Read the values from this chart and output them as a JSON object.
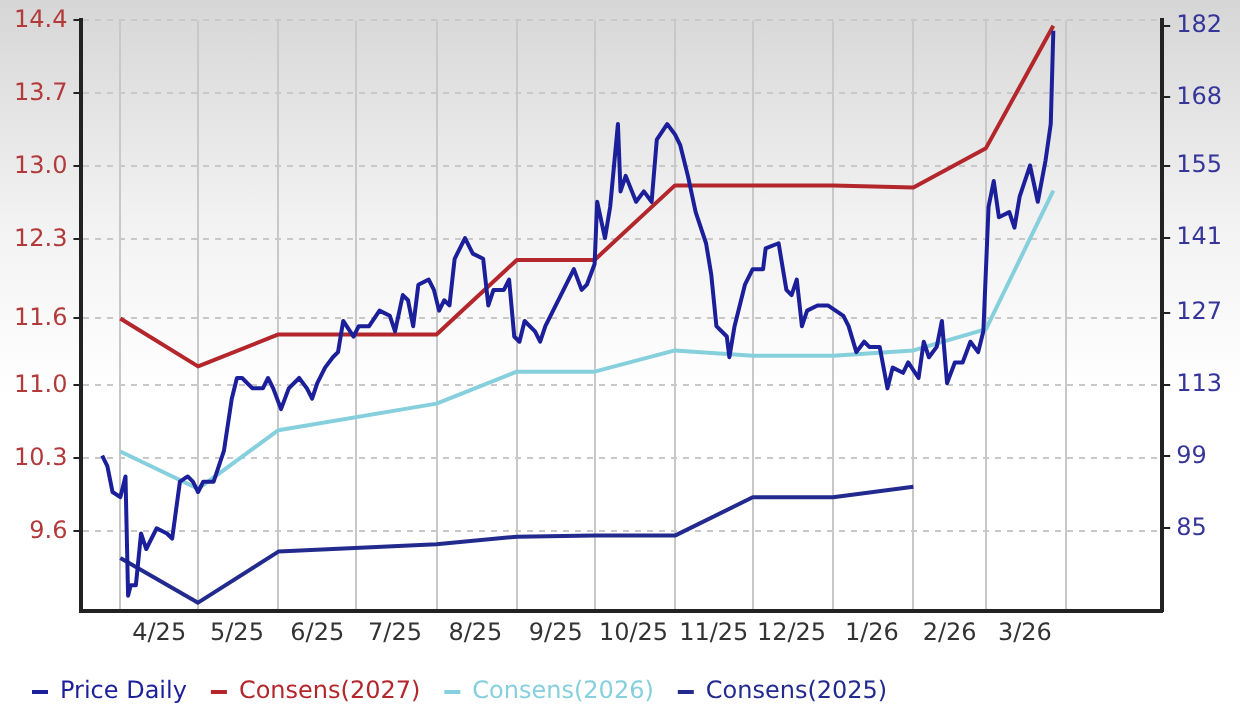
{
  "chart_data": {
    "type": "line",
    "xlim": [
      "2025-03-17",
      "2026-05-08"
    ],
    "xticks": [
      {
        "value": "2025-04-01",
        "label": null
      },
      {
        "value": "2025-04-16",
        "label": "4/25"
      },
      {
        "value": "2025-05-01",
        "label": null
      },
      {
        "value": "2025-05-16",
        "label": "5/25"
      },
      {
        "value": "2025-06-01",
        "label": null
      },
      {
        "value": "2025-06-16",
        "label": "6/25"
      },
      {
        "value": "2025-07-01",
        "label": null
      },
      {
        "value": "2025-07-16",
        "label": "7/25"
      },
      {
        "value": "2025-08-01",
        "label": null
      },
      {
        "value": "2025-08-16",
        "label": "8/25"
      },
      {
        "value": "2025-09-01",
        "label": null
      },
      {
        "value": "2025-09-16",
        "label": "9/25"
      },
      {
        "value": "2025-10-01",
        "label": null
      },
      {
        "value": "2025-10-16",
        "label": "10/25"
      },
      {
        "value": "2025-11-01",
        "label": null
      },
      {
        "value": "2025-11-16",
        "label": "11/25"
      },
      {
        "value": "2025-12-01",
        "label": null
      },
      {
        "value": "2025-12-16",
        "label": "12/25"
      },
      {
        "value": "2026-01-01",
        "label": null
      },
      {
        "value": "2026-01-16",
        "label": "1/26"
      },
      {
        "value": "2026-02-01",
        "label": null
      },
      {
        "value": "2026-02-15",
        "label": "2/26"
      },
      {
        "value": "2026-03-01",
        "label": null
      },
      {
        "value": "2026-03-16",
        "label": "3/26"
      },
      {
        "value": "2026-04-01",
        "label": null
      }
    ],
    "ylim": [
      8.85,
      14.4
    ],
    "yticks": [
      9.6,
      {
        "value": 10.286,
        "label": "10.3"
      },
      {
        "value": 10.971,
        "label": "11.0"
      },
      11.6,
      {
        "value": 12.343,
        "label": "12.3"
      },
      {
        "value": 13.029,
        "label": "13.0"
      },
      {
        "value": 13.714,
        "label": "13.7"
      },
      14.4
    ],
    "y2lim": [
      69,
      183
    ],
    "y2ticks": [
      85,
      {
        "value": 98.86,
        "label": "99"
      },
      {
        "value": 112.71,
        "label": "113"
      },
      {
        "value": 126.57,
        "label": "127"
      },
      141,
      155,
      {
        "value": 168.14,
        "label": "168"
      },
      182
    ],
    "grid": true,
    "legend": "bottom",
    "marker": "none",
    "line_style": "solid",
    "series": [
      {
        "name": "Price Daily",
        "color": "#1c1f9a",
        "axis": "y2",
        "x": [
          "2025-03-25",
          "2025-03-27",
          "2025-03-29",
          "2025-04-01",
          "2025-04-03",
          "2025-04-04",
          "2025-04-05",
          "2025-04-07",
          "2025-04-09",
          "2025-04-11",
          "2025-04-15",
          "2025-04-19",
          "2025-04-21",
          "2025-04-24",
          "2025-04-27",
          "2025-04-29",
          "2025-05-01",
          "2025-05-03",
          "2025-05-07",
          "2025-05-11",
          "2025-05-14",
          "2025-05-16",
          "2025-05-18",
          "2025-05-22",
          "2025-05-26",
          "2025-05-28",
          "2025-05-30",
          "2025-06-02",
          "2025-06-05",
          "2025-06-09",
          "2025-06-12",
          "2025-06-14",
          "2025-06-16",
          "2025-06-19",
          "2025-06-22",
          "2025-06-24",
          "2025-06-26",
          "2025-06-30",
          "2025-07-02",
          "2025-07-06",
          "2025-07-10",
          "2025-07-14",
          "2025-07-16",
          "2025-07-19",
          "2025-07-21",
          "2025-07-23",
          "2025-07-25",
          "2025-07-29",
          "2025-07-31",
          "2025-08-02",
          "2025-08-04",
          "2025-08-06",
          "2025-08-08",
          "2025-08-12",
          "2025-08-15",
          "2025-08-19",
          "2025-08-21",
          "2025-08-23",
          "2025-08-27",
          "2025-08-29",
          "2025-08-31",
          "2025-09-02",
          "2025-09-04",
          "2025-09-08",
          "2025-09-10",
          "2025-09-12",
          "2025-09-16",
          "2025-09-19",
          "2025-09-23",
          "2025-09-26",
          "2025-09-28",
          "2025-10-01",
          "2025-10-02",
          "2025-10-05",
          "2025-10-07",
          "2025-10-10",
          "2025-10-11",
          "2025-10-13",
          "2025-10-17",
          "2025-10-20",
          "2025-10-23",
          "2025-10-25",
          "2025-10-29",
          "2025-11-01",
          "2025-11-03",
          "2025-11-06",
          "2025-11-09",
          "2025-11-13",
          "2025-11-15",
          "2025-11-17",
          "2025-11-21",
          "2025-11-22",
          "2025-11-24",
          "2025-11-28",
          "2025-12-01",
          "2025-12-05",
          "2025-12-06",
          "2025-12-11",
          "2025-12-14",
          "2025-12-16",
          "2025-12-18",
          "2025-12-20",
          "2025-12-22",
          "2025-12-26",
          "2025-12-30",
          "2026-01-02",
          "2026-01-05",
          "2026-01-07",
          "2026-01-10",
          "2026-01-13",
          "2026-01-15",
          "2026-01-19",
          "2026-01-22",
          "2026-01-24",
          "2026-01-28",
          "2026-01-30",
          "2026-02-03",
          "2026-02-05",
          "2026-02-07",
          "2026-02-10",
          "2026-02-12",
          "2026-02-14",
          "2026-02-17",
          "2026-02-20",
          "2026-02-23",
          "2026-02-26",
          "2026-02-28",
          "2026-03-02",
          "2026-03-04",
          "2026-03-06",
          "2026-03-10",
          "2026-03-12",
          "2026-03-14",
          "2026-03-18",
          "2026-03-21",
          "2026-03-24",
          "2026-03-26",
          "2026-03-27"
        ],
        "values": [
          99,
          97,
          92,
          91,
          95,
          72,
          74,
          74,
          84,
          81,
          85,
          84,
          83,
          94,
          95,
          94,
          92,
          94,
          94,
          100,
          110,
          114,
          114,
          112,
          112,
          114,
          112,
          108,
          112,
          114,
          112,
          110,
          113,
          116,
          118,
          119,
          125,
          122,
          124,
          124,
          127,
          126,
          123,
          130,
          129,
          124,
          132,
          133,
          131,
          127,
          129,
          128,
          137,
          141,
          138,
          137,
          128,
          131,
          131,
          133,
          122,
          121,
          125,
          123,
          121,
          124,
          128,
          131,
          135,
          131,
          132,
          136,
          148,
          141,
          147,
          163,
          150,
          153,
          148,
          150,
          148,
          160,
          163,
          161,
          159,
          153,
          146,
          140,
          134,
          124,
          122,
          118,
          124,
          132,
          135,
          135,
          139,
          140,
          131,
          130,
          133,
          124,
          127,
          128,
          128,
          127,
          126,
          124,
          119,
          121,
          120,
          120,
          112,
          116,
          115,
          117,
          114,
          121,
          118,
          120,
          125,
          113,
          117,
          117,
          121,
          119,
          123,
          147,
          152,
          145,
          146,
          143,
          149,
          155,
          148,
          156,
          163,
          181
        ]
      },
      {
        "name": "Consens(2027)",
        "color": "#b3262b",
        "x": [
          "2025-04-01",
          "2025-05-01",
          "2025-06-01",
          "2025-08-01",
          "2025-09-01",
          "2025-10-01",
          "2025-11-01",
          "2026-01-01",
          "2026-02-01",
          "2026-03-01",
          "2026-03-27"
        ],
        "values": [
          11.6,
          11.15,
          11.45,
          11.45,
          12.15,
          12.15,
          12.85,
          12.85,
          12.83,
          13.2,
          14.35
        ]
      },
      {
        "name": "Consens(2026)",
        "color": "#86cfdc",
        "x": [
          "2025-04-01",
          "2025-05-01",
          "2025-06-01",
          "2025-08-01",
          "2025-09-01",
          "2025-10-01",
          "2025-11-01",
          "2025-12-01",
          "2026-01-01",
          "2026-02-01",
          "2026-03-01",
          "2026-03-27"
        ],
        "values": [
          10.35,
          10.0,
          10.55,
          10.8,
          11.1,
          11.1,
          11.3,
          11.25,
          11.25,
          11.3,
          11.5,
          12.8
        ]
      },
      {
        "name": "Consens(2025)",
        "color": "#222a8e",
        "x": [
          "2025-04-01",
          "2025-05-01",
          "2025-06-01",
          "2025-08-01",
          "2025-09-01",
          "2025-10-01",
          "2025-11-01",
          "2025-12-01",
          "2026-01-01",
          "2026-02-01"
        ],
        "values": [
          9.35,
          8.93,
          9.41,
          9.48,
          9.55,
          9.56,
          9.56,
          9.92,
          9.92,
          10.02
        ]
      }
    ]
  }
}
